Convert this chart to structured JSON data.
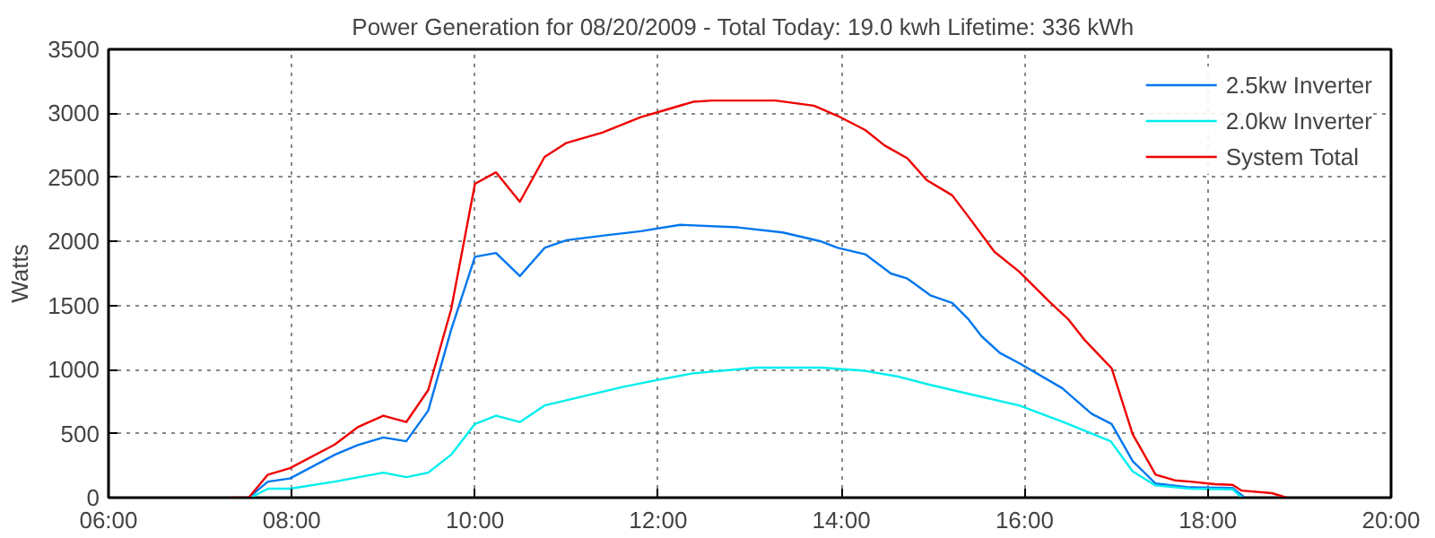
{
  "chart_data": {
    "type": "line",
    "title": "Power Generation for 08/20/2009 - Total Today: 19.0 kwh   Lifetime: 336 kWh",
    "ylabel": "Watts",
    "xlim": [
      6,
      20
    ],
    "xticks": [
      {
        "value": 6,
        "label": "06:00"
      },
      {
        "value": 8,
        "label": "08:00"
      },
      {
        "value": 10,
        "label": "10:00"
      },
      {
        "value": 12,
        "label": "12:00"
      },
      {
        "value": 14,
        "label": "14:00"
      },
      {
        "value": 16,
        "label": "16:00"
      },
      {
        "value": 18,
        "label": "18:00"
      },
      {
        "value": 20,
        "label": "20:00"
      }
    ],
    "ylim": [
      0,
      3500
    ],
    "yticks": [
      0,
      500,
      1000,
      1500,
      2000,
      2500,
      3000,
      3500
    ],
    "grid": true,
    "legend": "top right",
    "line_style": "solid",
    "series": [
      {
        "name": "2.5kw Inverter",
        "color": "#0077ee",
        "x": [
          7.53,
          7.74,
          7.98,
          8.47,
          8.72,
          9.0,
          9.25,
          9.49,
          9.74,
          10.0,
          10.23,
          10.49,
          10.76,
          11.0,
          11.39,
          11.81,
          12.24,
          12.87,
          13.36,
          13.78,
          13.96,
          14.26,
          14.54,
          14.72,
          14.97,
          15.21,
          15.39,
          15.53,
          15.73,
          15.94,
          16.41,
          16.73,
          16.95,
          17.18,
          17.43,
          17.81,
          18.27,
          18.37,
          18.4
        ],
        "values": [
          0,
          125,
          150,
          335,
          410,
          470,
          440,
          680,
          1310,
          1880,
          1910,
          1730,
          1950,
          2010,
          2045,
          2080,
          2130,
          2110,
          2070,
          2000,
          1950,
          1900,
          1750,
          1710,
          1580,
          1520,
          1390,
          1260,
          1130,
          1050,
          855,
          655,
          575,
          285,
          110,
          80,
          75,
          20,
          0
        ]
      },
      {
        "name": "2.0kw Inverter",
        "color": "#00eeee",
        "x": [
          7.55,
          7.74,
          7.98,
          8.47,
          9.0,
          9.25,
          9.49,
          9.74,
          10.0,
          10.23,
          10.49,
          10.76,
          11.0,
          11.62,
          12.0,
          12.38,
          13.07,
          13.78,
          14.26,
          14.62,
          14.97,
          15.39,
          15.94,
          16.44,
          16.94,
          17.18,
          17.43,
          17.81,
          18.27,
          18.37
        ],
        "values": [
          0,
          70,
          70,
          125,
          195,
          160,
          195,
          335,
          575,
          640,
          590,
          720,
          760,
          865,
          920,
          970,
          1015,
          1015,
          990,
          945,
          880,
          810,
          720,
          585,
          440,
          205,
          95,
          70,
          65,
          0
        ]
      },
      {
        "name": "System Total",
        "color": "#ee0000",
        "x": [
          7.32,
          7.53,
          7.74,
          7.98,
          8.47,
          8.72,
          9.0,
          9.25,
          9.49,
          9.74,
          10.0,
          10.23,
          10.49,
          10.76,
          11.0,
          11.39,
          11.81,
          12.0,
          12.38,
          12.59,
          13.28,
          13.7,
          13.96,
          14.26,
          14.47,
          14.72,
          14.93,
          15.21,
          15.39,
          15.67,
          15.94,
          16.27,
          16.48,
          16.65,
          16.83,
          16.95,
          17.18,
          17.43,
          17.64,
          17.81,
          18.08,
          18.27,
          18.37,
          18.7,
          18.86
        ],
        "values": [
          0,
          0,
          180,
          230,
          415,
          550,
          640,
          590,
          840,
          1470,
          2450,
          2540,
          2310,
          2660,
          2770,
          2850,
          2970,
          3010,
          3090,
          3100,
          3100,
          3060,
          2980,
          2870,
          2750,
          2650,
          2480,
          2360,
          2190,
          1920,
          1765,
          1530,
          1390,
          1235,
          1100,
          1010,
          495,
          180,
          135,
          125,
          105,
          100,
          55,
          35,
          0
        ]
      }
    ]
  }
}
